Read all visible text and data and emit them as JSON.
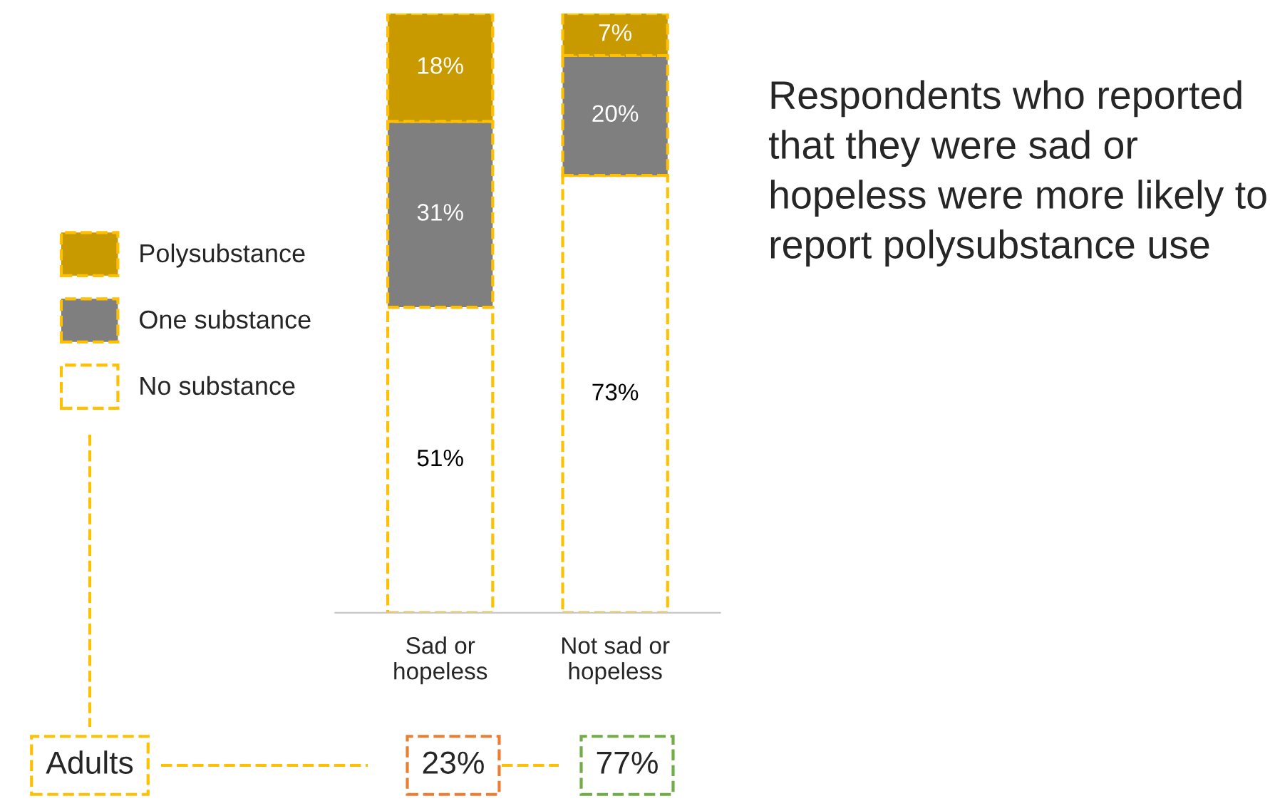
{
  "chart_data": {
    "type": "bar",
    "stacked": true,
    "legend": "left",
    "tick_labels": "x",
    "categories": [
      "Sad or\nhopeless",
      "Not sad or\nhopeless"
    ],
    "series": [
      {
        "name": "No substance",
        "color": "#ffffff",
        "values": [
          51,
          73
        ],
        "value_labels": [
          "51%",
          "73%"
        ]
      },
      {
        "name": "One substance",
        "color": "#7f7f7f",
        "values": [
          31,
          20
        ],
        "value_labels": [
          "31%",
          "20%"
        ]
      },
      {
        "name": "Polysubstance",
        "color": "#c99a00",
        "values": [
          18,
          7
        ],
        "value_labels": [
          "18%",
          "7%"
        ]
      }
    ],
    "annotations": [
      "Adults",
      "23%",
      "77%",
      "Respondents who reported that they were sad or hopeless were more likely to report polysubstance use"
    ]
  }
}
